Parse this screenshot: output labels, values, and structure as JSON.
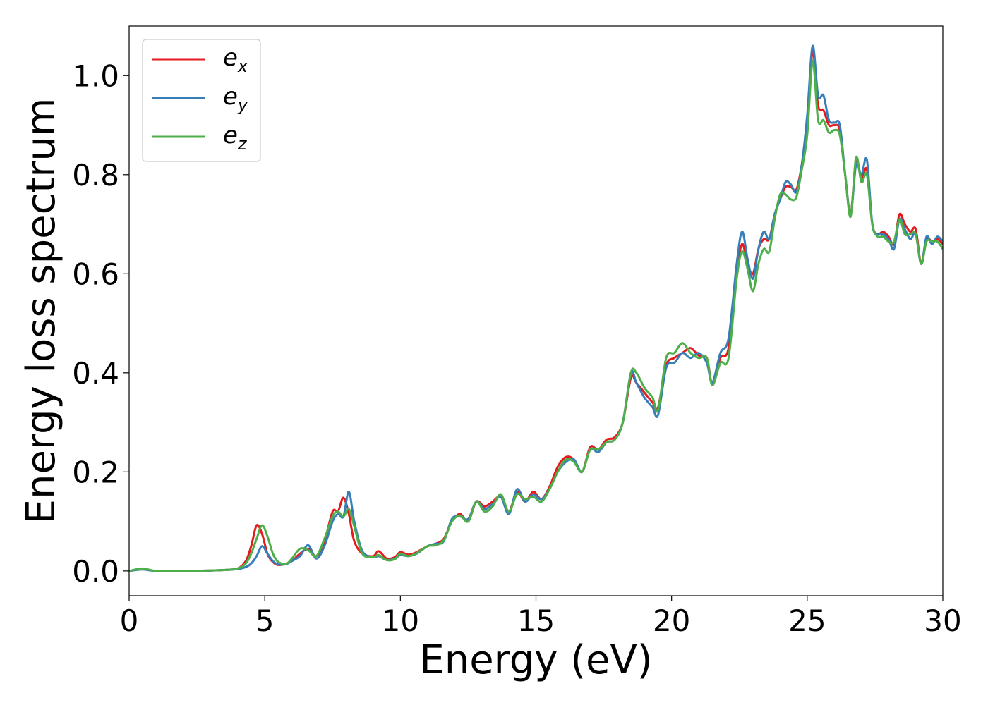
{
  "chart_data": {
    "type": "line",
    "title": "",
    "xlabel": "Energy (eV)",
    "ylabel": "Energy loss spectrum",
    "xlim": [
      0,
      30
    ],
    "ylim": [
      -0.05,
      1.1
    ],
    "xticks": [
      0,
      5,
      10,
      15,
      20,
      25,
      30
    ],
    "xtick_labels": [
      "0",
      "5",
      "10",
      "15",
      "20",
      "25",
      "30"
    ],
    "yticks": [
      0.0,
      0.2,
      0.4,
      0.6,
      0.8,
      1.0
    ],
    "ytick_labels": [
      "0.0",
      "0.2",
      "0.4",
      "0.6",
      "0.8",
      "1.0"
    ],
    "grid": false,
    "legend_position": "top-left",
    "series": [
      {
        "name": "e_x",
        "legend_main": "e",
        "legend_sub": "x",
        "color": "#e41a1c",
        "x": [
          0,
          0.5,
          1,
          2,
          3,
          3.5,
          4,
          4.3,
          4.5,
          4.7,
          4.9,
          5.1,
          5.3,
          5.5,
          5.8,
          6,
          6.3,
          6.6,
          6.9,
          7.2,
          7.5,
          7.7,
          7.9,
          8.1,
          8.3,
          8.6,
          9,
          9.2,
          9.5,
          9.8,
          10,
          10.3,
          10.6,
          11,
          11.3,
          11.6,
          11.9,
          12.2,
          12.5,
          12.8,
          13.1,
          13.4,
          13.7,
          14,
          14.3,
          14.6,
          14.9,
          15.2,
          15.5,
          15.8,
          16.1,
          16.4,
          16.7,
          17,
          17.3,
          17.6,
          17.9,
          18.2,
          18.5,
          18.7,
          19,
          19.3,
          19.5,
          19.8,
          20.1,
          20.4,
          20.7,
          21,
          21.3,
          21.5,
          21.8,
          22.1,
          22.4,
          22.6,
          22.8,
          23,
          23.2,
          23.4,
          23.6,
          23.8,
          24,
          24.2,
          24.4,
          24.6,
          24.8,
          25,
          25.2,
          25.4,
          25.6,
          25.8,
          26,
          26.2,
          26.4,
          26.6,
          26.8,
          27,
          27.2,
          27.4,
          27.6,
          27.8,
          28,
          28.2,
          28.4,
          28.6,
          28.8,
          29,
          29.2,
          29.4,
          29.6,
          29.8,
          30
        ],
        "y": [
          0.0,
          0.004,
          0.0,
          0.0,
          0.001,
          0.002,
          0.005,
          0.02,
          0.05,
          0.092,
          0.075,
          0.035,
          0.018,
          0.012,
          0.015,
          0.02,
          0.035,
          0.045,
          0.03,
          0.06,
          0.12,
          0.12,
          0.148,
          0.115,
          0.06,
          0.035,
          0.03,
          0.04,
          0.025,
          0.028,
          0.038,
          0.033,
          0.038,
          0.05,
          0.055,
          0.065,
          0.1,
          0.115,
          0.1,
          0.14,
          0.13,
          0.14,
          0.15,
          0.12,
          0.16,
          0.14,
          0.16,
          0.145,
          0.17,
          0.21,
          0.23,
          0.225,
          0.2,
          0.25,
          0.245,
          0.265,
          0.27,
          0.3,
          0.39,
          0.38,
          0.36,
          0.34,
          0.33,
          0.415,
          0.43,
          0.44,
          0.45,
          0.435,
          0.43,
          0.38,
          0.43,
          0.45,
          0.6,
          0.66,
          0.62,
          0.6,
          0.65,
          0.67,
          0.67,
          0.72,
          0.75,
          0.775,
          0.775,
          0.77,
          0.82,
          0.9,
          1.05,
          0.94,
          0.93,
          0.9,
          0.9,
          0.89,
          0.8,
          0.72,
          0.83,
          0.79,
          0.81,
          0.7,
          0.68,
          0.685,
          0.675,
          0.66,
          0.72,
          0.7,
          0.685,
          0.69,
          0.62,
          0.67,
          0.665,
          0.67,
          0.66
        ]
      },
      {
        "name": "e_y",
        "legend_main": "e",
        "legend_sub": "y",
        "color": "#377eb8",
        "x": [
          0,
          0.5,
          1,
          2,
          3,
          3.5,
          4,
          4.3,
          4.5,
          4.7,
          4.9,
          5.1,
          5.3,
          5.5,
          5.8,
          6,
          6.3,
          6.6,
          6.9,
          7.2,
          7.5,
          7.7,
          7.9,
          8.1,
          8.3,
          8.6,
          9,
          9.2,
          9.5,
          9.8,
          10,
          10.3,
          10.6,
          11,
          11.3,
          11.6,
          11.9,
          12.2,
          12.5,
          12.8,
          13.1,
          13.4,
          13.7,
          14,
          14.3,
          14.6,
          14.9,
          15.2,
          15.5,
          15.8,
          16.1,
          16.4,
          16.7,
          17,
          17.3,
          17.6,
          17.9,
          18.2,
          18.5,
          18.7,
          19,
          19.3,
          19.5,
          19.8,
          20.1,
          20.4,
          20.7,
          21,
          21.3,
          21.5,
          21.8,
          22.1,
          22.4,
          22.6,
          22.8,
          23,
          23.2,
          23.4,
          23.6,
          23.8,
          24,
          24.2,
          24.4,
          24.6,
          24.8,
          25,
          25.2,
          25.4,
          25.6,
          25.8,
          26,
          26.2,
          26.4,
          26.6,
          26.8,
          27,
          27.2,
          27.4,
          27.6,
          27.8,
          28,
          28.2,
          28.4,
          28.6,
          28.8,
          29,
          29.2,
          29.4,
          29.6,
          29.8,
          30
        ],
        "y": [
          0.0,
          0.003,
          0.0,
          0.0,
          0.001,
          0.002,
          0.004,
          0.008,
          0.015,
          0.03,
          0.05,
          0.035,
          0.02,
          0.013,
          0.014,
          0.02,
          0.03,
          0.052,
          0.025,
          0.05,
          0.1,
          0.115,
          0.11,
          0.16,
          0.1,
          0.04,
          0.028,
          0.03,
          0.022,
          0.025,
          0.032,
          0.03,
          0.035,
          0.05,
          0.055,
          0.06,
          0.105,
          0.11,
          0.105,
          0.14,
          0.125,
          0.135,
          0.15,
          0.115,
          0.165,
          0.14,
          0.155,
          0.145,
          0.165,
          0.2,
          0.22,
          0.225,
          0.2,
          0.245,
          0.24,
          0.26,
          0.265,
          0.3,
          0.4,
          0.38,
          0.35,
          0.33,
          0.315,
          0.41,
          0.42,
          0.44,
          0.43,
          0.44,
          0.42,
          0.38,
          0.44,
          0.47,
          0.62,
          0.685,
          0.63,
          0.59,
          0.65,
          0.685,
          0.67,
          0.72,
          0.75,
          0.785,
          0.78,
          0.765,
          0.82,
          0.92,
          1.06,
          0.96,
          0.96,
          0.91,
          0.905,
          0.9,
          0.8,
          0.72,
          0.82,
          0.8,
          0.83,
          0.7,
          0.68,
          0.68,
          0.67,
          0.65,
          0.71,
          0.69,
          0.67,
          0.68,
          0.62,
          0.675,
          0.66,
          0.675,
          0.665
        ]
      },
      {
        "name": "e_z",
        "legend_main": "e",
        "legend_sub": "z",
        "color": "#4daf4a",
        "x": [
          0,
          0.5,
          1,
          2,
          3,
          3.5,
          4,
          4.3,
          4.5,
          4.7,
          4.9,
          5.1,
          5.3,
          5.5,
          5.8,
          6,
          6.3,
          6.6,
          6.9,
          7.2,
          7.5,
          7.7,
          7.9,
          8.1,
          8.3,
          8.6,
          9,
          9.2,
          9.5,
          9.8,
          10,
          10.3,
          10.6,
          11,
          11.3,
          11.6,
          11.9,
          12.2,
          12.5,
          12.8,
          13.1,
          13.4,
          13.7,
          14,
          14.3,
          14.6,
          14.9,
          15.2,
          15.5,
          15.8,
          16.1,
          16.4,
          16.7,
          17,
          17.3,
          17.6,
          17.9,
          18.2,
          18.5,
          18.7,
          19,
          19.3,
          19.5,
          19.8,
          20.1,
          20.4,
          20.7,
          21,
          21.3,
          21.5,
          21.8,
          22.1,
          22.4,
          22.6,
          22.8,
          23,
          23.2,
          23.4,
          23.6,
          23.8,
          24,
          24.2,
          24.4,
          24.6,
          24.8,
          25,
          25.2,
          25.4,
          25.6,
          25.8,
          26,
          26.2,
          26.4,
          26.6,
          26.8,
          27,
          27.2,
          27.4,
          27.6,
          27.8,
          28,
          28.2,
          28.4,
          28.6,
          28.8,
          29,
          29.2,
          29.4,
          29.6,
          29.8,
          30
        ],
        "y": [
          0.0,
          0.005,
          0.0,
          0.0,
          0.001,
          0.002,
          0.005,
          0.015,
          0.035,
          0.065,
          0.092,
          0.07,
          0.035,
          0.018,
          0.015,
          0.025,
          0.045,
          0.042,
          0.03,
          0.065,
          0.11,
          0.12,
          0.11,
          0.125,
          0.09,
          0.035,
          0.028,
          0.032,
          0.022,
          0.024,
          0.035,
          0.03,
          0.036,
          0.05,
          0.052,
          0.062,
          0.1,
          0.112,
          0.1,
          0.14,
          0.12,
          0.13,
          0.155,
          0.12,
          0.155,
          0.145,
          0.15,
          0.14,
          0.165,
          0.2,
          0.225,
          0.22,
          0.2,
          0.245,
          0.245,
          0.26,
          0.265,
          0.3,
          0.4,
          0.4,
          0.37,
          0.35,
          0.325,
          0.43,
          0.44,
          0.46,
          0.44,
          0.43,
          0.43,
          0.375,
          0.42,
          0.43,
          0.59,
          0.645,
          0.61,
          0.565,
          0.62,
          0.65,
          0.645,
          0.71,
          0.76,
          0.76,
          0.75,
          0.755,
          0.81,
          0.88,
          1.03,
          0.91,
          0.91,
          0.885,
          0.89,
          0.88,
          0.8,
          0.715,
          0.835,
          0.785,
          0.8,
          0.7,
          0.675,
          0.675,
          0.665,
          0.665,
          0.71,
          0.68,
          0.68,
          0.68,
          0.62,
          0.665,
          0.665,
          0.665,
          0.65
        ]
      }
    ]
  }
}
